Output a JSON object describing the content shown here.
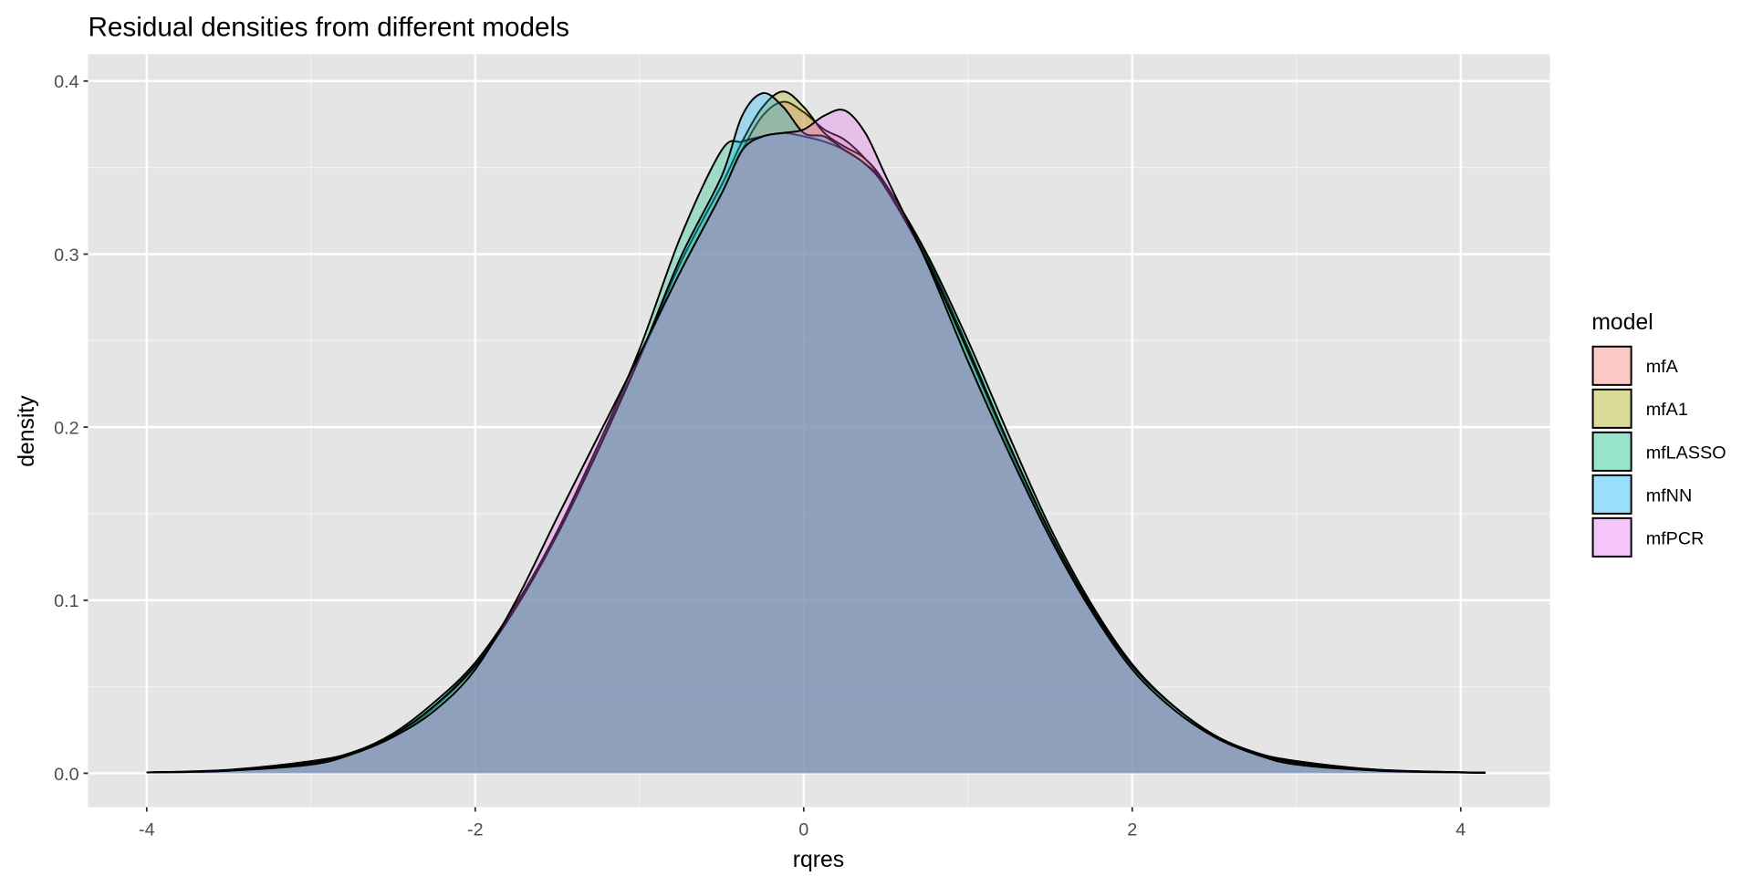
{
  "chart_data": {
    "type": "area",
    "title": "Residual densities from different models",
    "xlabel": "rqres",
    "ylabel": "density",
    "xlim": [
      -4.1,
      4.3
    ],
    "ylim": [
      -0.02,
      0.41
    ],
    "xticks": [
      -4,
      -2,
      0,
      2,
      4
    ],
    "xtick_labels": [
      "-4",
      "-2",
      "0",
      "2",
      "4"
    ],
    "yticks": [
      0.0,
      0.1,
      0.2,
      0.3,
      0.4
    ],
    "ytick_labels": [
      "0.0",
      "0.1",
      "0.2",
      "0.3",
      "0.4"
    ],
    "grid": true,
    "legend": {
      "title": "model",
      "placement": "right"
    },
    "x": [
      -4,
      -3.5,
      -3,
      -2.75,
      -2.5,
      -2.25,
      -2,
      -1.75,
      -1.5,
      -1.25,
      -1,
      -0.75,
      -0.5,
      -0.375,
      -0.25,
      -0.125,
      0,
      0.125,
      0.25,
      0.375,
      0.5,
      0.75,
      1,
      1.25,
      1.5,
      1.75,
      2,
      2.25,
      2.5,
      2.75,
      3,
      3.5,
      4.15
    ],
    "series": [
      {
        "name": "mfA",
        "color": "#F8766D",
        "values": [
          0.0005,
          0.0015,
          0.006,
          0.012,
          0.021,
          0.038,
          0.062,
          0.097,
          0.14,
          0.19,
          0.24,
          0.29,
          0.335,
          0.36,
          0.38,
          0.388,
          0.382,
          0.372,
          0.366,
          0.355,
          0.34,
          0.296,
          0.243,
          0.188,
          0.138,
          0.096,
          0.062,
          0.039,
          0.022,
          0.011,
          0.006,
          0.0015,
          0.0003
        ]
      },
      {
        "name": "mfA1",
        "color": "#A3A500",
        "values": [
          0.0005,
          0.0015,
          0.006,
          0.012,
          0.022,
          0.039,
          0.063,
          0.097,
          0.138,
          0.187,
          0.24,
          0.295,
          0.34,
          0.365,
          0.385,
          0.394,
          0.385,
          0.37,
          0.362,
          0.355,
          0.34,
          0.298,
          0.246,
          0.19,
          0.139,
          0.096,
          0.062,
          0.039,
          0.022,
          0.012,
          0.007,
          0.002,
          0.0003
        ]
      },
      {
        "name": "mfLASSO",
        "color": "#00BF7D",
        "values": [
          0.0005,
          0.002,
          0.007,
          0.012,
          0.023,
          0.041,
          0.064,
          0.098,
          0.14,
          0.19,
          0.245,
          0.31,
          0.36,
          0.365,
          0.368,
          0.37,
          0.368,
          0.365,
          0.36,
          0.352,
          0.34,
          0.3,
          0.25,
          0.195,
          0.142,
          0.098,
          0.063,
          0.039,
          0.022,
          0.012,
          0.007,
          0.002,
          0.0003
        ]
      },
      {
        "name": "mfNN",
        "color": "#00B0F6",
        "values": [
          0.0005,
          0.0015,
          0.006,
          0.012,
          0.022,
          0.039,
          0.062,
          0.096,
          0.138,
          0.187,
          0.24,
          0.298,
          0.345,
          0.38,
          0.393,
          0.385,
          0.37,
          0.368,
          0.36,
          0.352,
          0.338,
          0.296,
          0.244,
          0.19,
          0.139,
          0.096,
          0.062,
          0.039,
          0.022,
          0.012,
          0.006,
          0.0015,
          0.0003
        ]
      },
      {
        "name": "mfPCR",
        "color": "#E76BF3",
        "values": [
          0.0005,
          0.0015,
          0.005,
          0.011,
          0.021,
          0.036,
          0.06,
          0.1,
          0.148,
          0.195,
          0.242,
          0.29,
          0.335,
          0.36,
          0.368,
          0.37,
          0.372,
          0.38,
          0.383,
          0.37,
          0.345,
          0.295,
          0.238,
          0.185,
          0.136,
          0.094,
          0.06,
          0.037,
          0.021,
          0.011,
          0.005,
          0.0015,
          0.0003
        ]
      }
    ]
  }
}
